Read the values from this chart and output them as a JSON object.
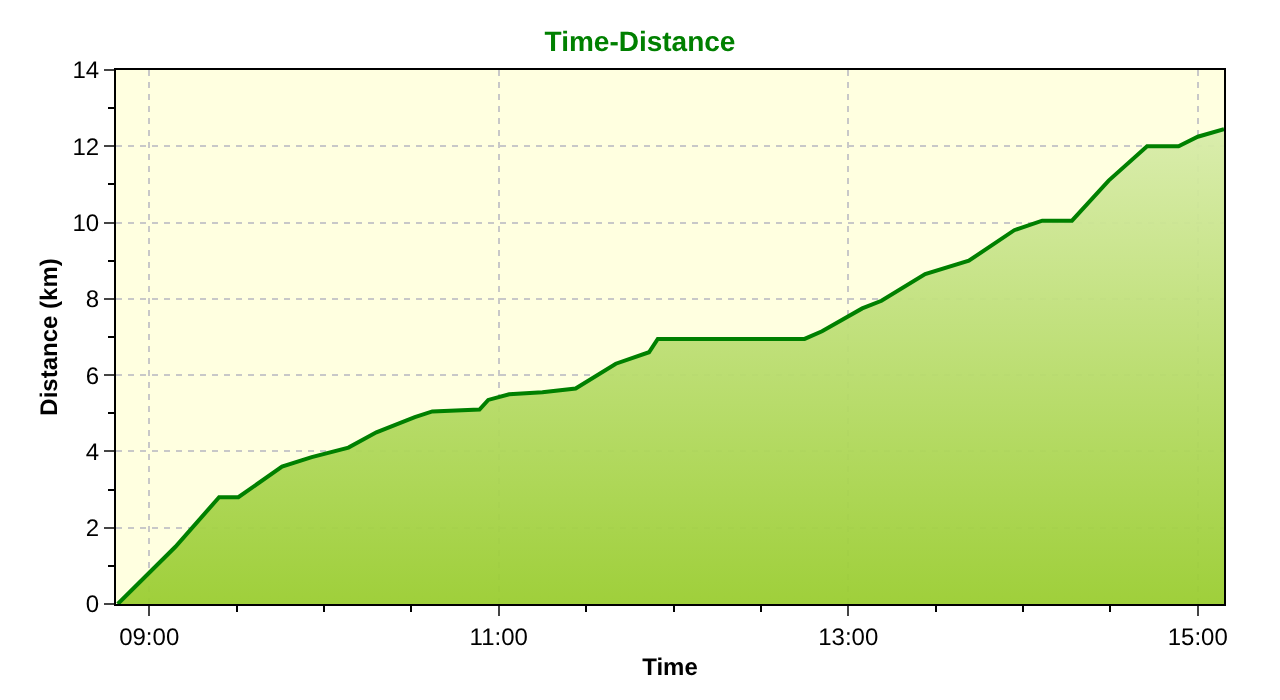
{
  "chart_data": {
    "type": "area",
    "title": "Time-Distance",
    "xlabel": "Time",
    "ylabel": "Distance (km)",
    "xlim": [
      8.81,
      15.15
    ],
    "ylim": [
      0,
      14
    ],
    "xticks": [
      {
        "value": 9,
        "label": "09:00"
      },
      {
        "value": 11,
        "label": "11:00"
      },
      {
        "value": 13,
        "label": "13:00"
      },
      {
        "value": 15,
        "label": "15:00"
      }
    ],
    "yticks": [
      0,
      2,
      4,
      6,
      8,
      10,
      12,
      14
    ],
    "grid": true,
    "marker": "none",
    "line_style": "solid",
    "x": [
      8.82,
      9.15,
      9.4,
      9.51,
      9.76,
      9.93,
      10.14,
      10.3,
      10.52,
      10.62,
      10.89,
      10.94,
      11.06,
      11.25,
      11.44,
      11.67,
      11.86,
      11.91,
      12.75,
      12.85,
      13.08,
      13.19,
      13.44,
      13.69,
      13.95,
      14.11,
      14.28,
      14.49,
      14.71,
      14.89,
      15.0,
      15.15
    ],
    "series": [
      {
        "color": "#008000",
        "values": [
          0,
          1.5,
          2.8,
          2.8,
          3.6,
          3.85,
          4.1,
          4.5,
          4.9,
          5.05,
          5.1,
          5.35,
          5.5,
          5.55,
          5.65,
          6.3,
          6.6,
          6.95,
          6.95,
          7.15,
          7.75,
          7.95,
          8.65,
          9.0,
          9.8,
          10.05,
          10.05,
          11.1,
          12.0,
          12.0,
          12.25,
          12.45
        ]
      }
    ]
  }
}
